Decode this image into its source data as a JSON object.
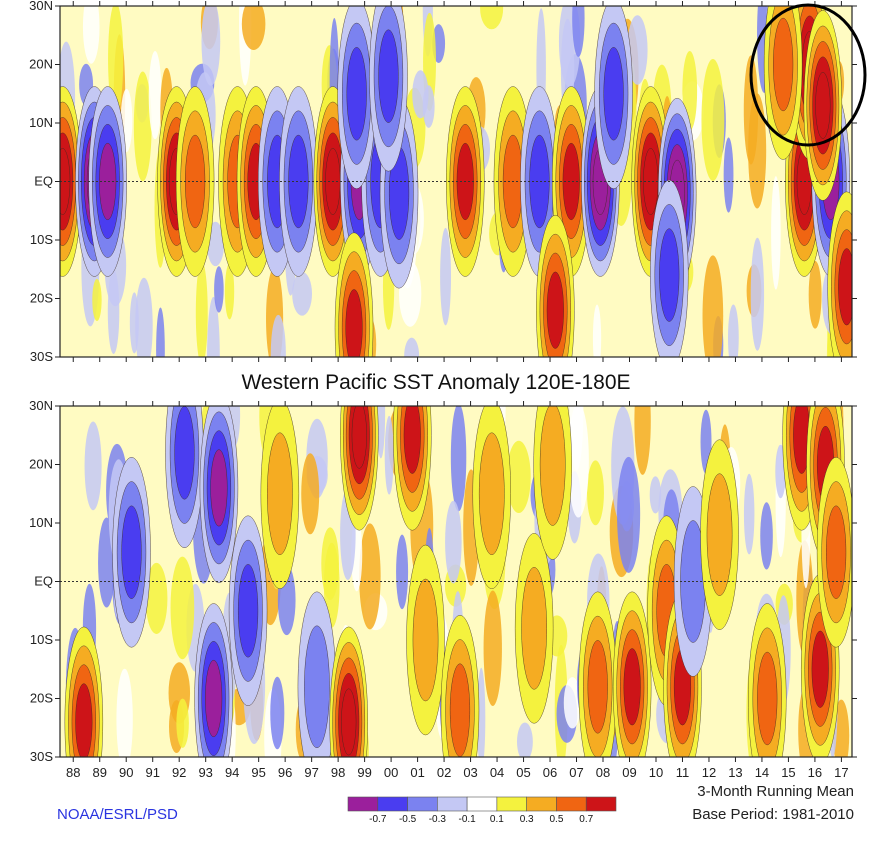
{
  "chart_data": [
    {
      "type": "heatmap",
      "title": "",
      "xlabel": "",
      "ylabel": "",
      "y_ticks": [
        "30N",
        "20N",
        "10N",
        "EQ",
        "10S",
        "20S",
        "30S"
      ],
      "y_range": [
        -30,
        30
      ],
      "x_range": [
        1987.5,
        2017.4
      ],
      "grid": false,
      "highlight": "black circle around 2015-2017, 10N-30N",
      "hotspots": [
        {
          "year": 1987.6,
          "lat": 0,
          "value": 0.9
        },
        {
          "year": 1988.8,
          "lat": 0,
          "value": -0.9
        },
        {
          "year": 1989.3,
          "lat": 0,
          "value": -0.7
        },
        {
          "year": 1991.9,
          "lat": 0,
          "value": 0.9
        },
        {
          "year": 1992.6,
          "lat": 0,
          "value": 0.5
        },
        {
          "year": 1994.2,
          "lat": 0,
          "value": 0.5
        },
        {
          "year": 1994.9,
          "lat": 0,
          "value": 0.7
        },
        {
          "year": 1995.7,
          "lat": 0,
          "value": -0.6
        },
        {
          "year": 1996.5,
          "lat": 0,
          "value": -0.5
        },
        {
          "year": 1997.8,
          "lat": 0,
          "value": 1.1
        },
        {
          "year": 1998.8,
          "lat": 0,
          "value": -0.8
        },
        {
          "year": 1999.6,
          "lat": 0,
          "value": -0.6
        },
        {
          "year": 2000.3,
          "lat": -2,
          "value": -0.5
        },
        {
          "year": 2002.8,
          "lat": 0,
          "value": 0.7
        },
        {
          "year": 2004.6,
          "lat": 0,
          "value": 0.5
        },
        {
          "year": 2005.6,
          "lat": 0,
          "value": -0.5
        },
        {
          "year": 2006.8,
          "lat": 0,
          "value": 0.8
        },
        {
          "year": 2007.9,
          "lat": 0,
          "value": -0.9
        },
        {
          "year": 2009.8,
          "lat": 0,
          "value": 0.9
        },
        {
          "year": 2010.8,
          "lat": -2,
          "value": -0.9
        },
        {
          "year": 2015.6,
          "lat": 0,
          "value": 1.2
        },
        {
          "year": 2016.6,
          "lat": 0,
          "value": -0.7
        },
        {
          "year": 2015.8,
          "lat": 20,
          "value": 0.9
        },
        {
          "year": 2016.3,
          "lat": 13,
          "value": 0.9
        },
        {
          "year": 2014.8,
          "lat": 20,
          "value": 0.5
        },
        {
          "year": 1998.6,
          "lat": -25,
          "value": 0.7
        },
        {
          "year": 2006.2,
          "lat": -22,
          "value": 0.8
        },
        {
          "year": 2017.2,
          "lat": -18,
          "value": 0.7
        },
        {
          "year": 1998.7,
          "lat": 15,
          "value": -0.6
        },
        {
          "year": 1999.9,
          "lat": 18,
          "value": -0.6
        },
        {
          "year": 2008.4,
          "lat": 15,
          "value": -0.5
        },
        {
          "year": 2010.5,
          "lat": -16,
          "value": -0.6
        }
      ]
    },
    {
      "type": "heatmap",
      "title": "Western Pacific SST Anomaly 120E-180E",
      "xlabel": "",
      "ylabel": "",
      "y_ticks": [
        "30N",
        "20N",
        "10N",
        "EQ",
        "10S",
        "20S",
        "30S"
      ],
      "y_range": [
        -30,
        30
      ],
      "x_range": [
        1987.5,
        2017.4
      ],
      "x_ticks": [
        "88",
        "89",
        "90",
        "91",
        "92",
        "93",
        "94",
        "95",
        "96",
        "97",
        "98",
        "99",
        "00",
        "01",
        "02",
        "03",
        "04",
        "05",
        "06",
        "07",
        "08",
        "09",
        "10",
        "11",
        "12",
        "13",
        "14",
        "15",
        "16",
        "17"
      ],
      "grid": false,
      "hotspots": [
        {
          "year": 1988.4,
          "lat": -24,
          "value": 0.8
        },
        {
          "year": 1990.2,
          "lat": 5,
          "value": -0.5
        },
        {
          "year": 1992.2,
          "lat": 22,
          "value": -0.5
        },
        {
          "year": 1993.3,
          "lat": -20,
          "value": -0.7
        },
        {
          "year": 1993.5,
          "lat": 16,
          "value": -0.7
        },
        {
          "year": 1994.6,
          "lat": -5,
          "value": -0.5
        },
        {
          "year": 1995.8,
          "lat": 15,
          "value": 0.4
        },
        {
          "year": 1997.2,
          "lat": -18,
          "value": -0.4
        },
        {
          "year": 1998.4,
          "lat": -24,
          "value": 0.9
        },
        {
          "year": 1998.8,
          "lat": 25,
          "value": 0.9
        },
        {
          "year": 2000.8,
          "lat": 25,
          "value": 0.8
        },
        {
          "year": 2001.3,
          "lat": -10,
          "value": 0.4
        },
        {
          "year": 2002.6,
          "lat": -22,
          "value": 0.5
        },
        {
          "year": 2003.8,
          "lat": 15,
          "value": 0.4
        },
        {
          "year": 2005.4,
          "lat": -8,
          "value": 0.4
        },
        {
          "year": 2006.1,
          "lat": 20,
          "value": 0.4
        },
        {
          "year": 2007.8,
          "lat": -18,
          "value": 0.5
        },
        {
          "year": 2009.1,
          "lat": -18,
          "value": 0.7
        },
        {
          "year": 2010.4,
          "lat": -5,
          "value": 0.5
        },
        {
          "year": 2011.0,
          "lat": -18,
          "value": 0.7
        },
        {
          "year": 2011.4,
          "lat": 0,
          "value": -0.4
        },
        {
          "year": 2012.4,
          "lat": 8,
          "value": 0.4
        },
        {
          "year": 2014.2,
          "lat": -20,
          "value": 0.5
        },
        {
          "year": 2015.5,
          "lat": 25,
          "value": 0.7
        },
        {
          "year": 2016.4,
          "lat": 20,
          "value": 0.8
        },
        {
          "year": 2016.2,
          "lat": -15,
          "value": 0.7
        },
        {
          "year": 2016.8,
          "lat": 5,
          "value": 0.5
        }
      ]
    }
  ],
  "colorbar": {
    "labels": [
      "-0.7",
      "-0.5",
      "-0.3",
      "-0.1",
      "0.1",
      "0.3",
      "0.5",
      "0.7"
    ],
    "colors": [
      "#9b1f9c",
      "#4a3df0",
      "#7b82f0",
      "#c4c8f4",
      "#ffffff",
      "#f4f23e",
      "#f5ac22",
      "#f06512",
      "#cd1418"
    ]
  },
  "footer": {
    "credit": "NOAA/ESRL/PSD",
    "running_mean": "3-Month Running Mean",
    "base_period": "Base Period: 1981-2010"
  }
}
